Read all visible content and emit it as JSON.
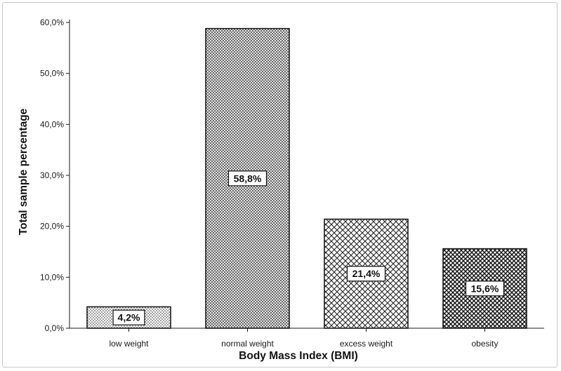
{
  "chart_data": {
    "type": "bar",
    "categories": [
      "low weight",
      "normal weight",
      "excess weight",
      "obesity"
    ],
    "values": [
      4.2,
      58.8,
      21.4,
      15.6
    ],
    "data_labels": [
      "4,2%",
      "58,8%",
      "21,4%",
      "15,6%"
    ],
    "patterns": [
      "dots",
      "fine-crosshatch",
      "crosshatch",
      "dense-crosshatch"
    ],
    "title": "",
    "xlabel": "Body Mass Index (BMI)",
    "ylabel": "Total sample percentage",
    "ylim": [
      0,
      60
    ],
    "yticks": [
      0,
      10,
      20,
      30,
      40,
      50,
      60
    ],
    "ytick_labels": [
      "0,0%",
      "10,0%",
      "20,0%",
      "30,0%",
      "40,0%",
      "50,0%",
      "60,0%"
    ],
    "grid": false,
    "bar_fill": "#ffffff",
    "bar_stroke": "#1a1a1a"
  }
}
